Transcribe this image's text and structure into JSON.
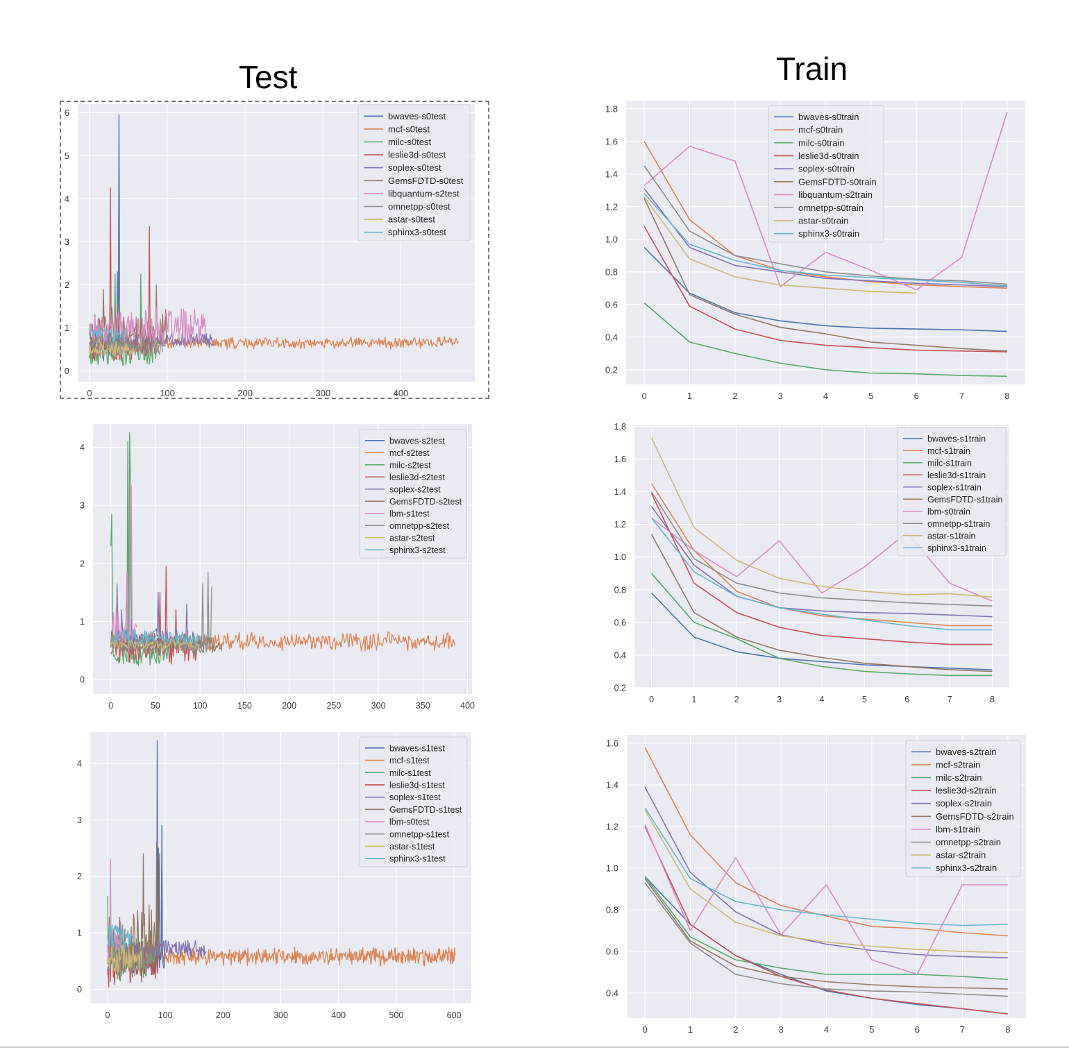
{
  "headings": {
    "test": "Test",
    "train": "Train"
  },
  "colors": {
    "bwaves": "#4c72b0",
    "mcf": "#dd8452",
    "milc": "#55a868",
    "leslie3d": "#c44e52",
    "soplex": "#8172b3",
    "GemsFDTD": "#937860",
    "lib": "#da8bc3",
    "omnetpp": "#8c8c8c",
    "astar": "#ccb974",
    "sphinx3": "#64b5cd"
  },
  "chart_data": [
    {
      "id": "test-s0",
      "type": "line",
      "xlim": [
        -15,
        495
      ],
      "ylim": [
        -0.25,
        6.2
      ],
      "xticks": [
        0,
        100,
        200,
        300,
        400
      ],
      "yticks": [
        0,
        1,
        2,
        3,
        4,
        5,
        6
      ],
      "ytick_decimals": 0,
      "series": [
        {
          "name": "bwaves-s0test",
          "key": "bwaves",
          "n": 40,
          "base": 0.5,
          "amp": 0.22,
          "seed": 11,
          "spikes": [
            [
              38,
              5.95
            ],
            [
              36,
              2.3
            ]
          ]
        },
        {
          "name": "mcf-s0test",
          "key": "mcf",
          "n": 475,
          "base": 0.65,
          "amp": 0.1,
          "seed": 12,
          "spikes": []
        },
        {
          "name": "milc-s0test",
          "key": "milc",
          "n": 88,
          "base": 0.45,
          "amp": 0.28,
          "seed": 13,
          "spikes": [
            [
              33,
              2.25
            ],
            [
              66,
              2.25
            ]
          ]
        },
        {
          "name": "leslie3d-s0test",
          "key": "leslie3d",
          "n": 85,
          "base": 0.55,
          "amp": 0.3,
          "seed": 14,
          "spikes": [
            [
              27,
              4.25
            ],
            [
              77,
              3.35
            ]
          ]
        },
        {
          "name": "soplex-s0test",
          "key": "soplex",
          "n": 162,
          "base": 0.72,
          "amp": 0.13,
          "seed": 15,
          "spikes": []
        },
        {
          "name": "GemsFDTD-s0test",
          "key": "GemsFDTD",
          "n": 100,
          "base": 0.95,
          "amp": 0.45,
          "seed": 16,
          "spikes": [
            [
              18,
              1.9
            ],
            [
              86,
              2.0
            ]
          ]
        },
        {
          "name": "libquantum-s2test",
          "key": "lib",
          "n": 150,
          "base": 1.0,
          "amp": 0.35,
          "seed": 17,
          "spikes": []
        },
        {
          "name": "omnetpp-s0test",
          "key": "omnetpp",
          "n": 95,
          "base": 0.55,
          "amp": 0.2,
          "seed": 18,
          "spikes": []
        },
        {
          "name": "astar-s0test",
          "key": "astar",
          "n": 60,
          "base": 0.5,
          "amp": 0.15,
          "seed": 19,
          "spikes": []
        },
        {
          "name": "sphinx3-s0test",
          "key": "sphinx3",
          "n": 48,
          "base": 0.85,
          "amp": 0.12,
          "seed": 20,
          "spikes": []
        }
      ]
    },
    {
      "id": "test-s2",
      "type": "line",
      "xlim": [
        -20,
        405
      ],
      "ylim": [
        -0.25,
        4.4
      ],
      "xticks": [
        0,
        50,
        100,
        150,
        200,
        250,
        300,
        350,
        400
      ],
      "yticks": [
        0,
        1,
        2,
        3,
        4
      ],
      "ytick_decimals": 0,
      "series": [
        {
          "name": "bwaves-s2test",
          "key": "bwaves",
          "n": 60,
          "base": 0.65,
          "amp": 0.07,
          "seed": 21,
          "spikes": []
        },
        {
          "name": "mcf-s2test",
          "key": "mcf",
          "n": 387,
          "base": 0.65,
          "amp": 0.12,
          "seed": 22,
          "spikes": []
        },
        {
          "name": "milc-s2test",
          "key": "milc",
          "n": 70,
          "base": 0.45,
          "amp": 0.18,
          "seed": 23,
          "spikes": [
            [
              1,
              2.85
            ],
            [
              0,
              2.3
            ],
            [
              19,
              4.1
            ],
            [
              21,
              4.25
            ],
            [
              22,
              3.4
            ]
          ]
        },
        {
          "name": "leslie3d-s2test",
          "key": "leslie3d",
          "n": 100,
          "base": 0.55,
          "amp": 0.2,
          "seed": 24,
          "spikes": [
            [
              62,
              1.95
            ],
            [
              55,
              1.5
            ],
            [
              73,
              1.2
            ]
          ]
        },
        {
          "name": "soplex-s2test",
          "key": "soplex",
          "n": 110,
          "base": 0.7,
          "amp": 0.15,
          "seed": 25,
          "spikes": [
            [
              7,
              1.65
            ],
            [
              12,
              1.2
            ],
            [
              23,
              1.05
            ],
            [
              53,
              1.5
            ],
            [
              85,
              1.3
            ]
          ]
        },
        {
          "name": "GemsFDTD-s2test",
          "key": "GemsFDTD",
          "n": 125,
          "base": 0.6,
          "amp": 0.14,
          "seed": 26,
          "spikes": []
        },
        {
          "name": "lbm-s1test",
          "key": "lib",
          "n": 30,
          "base": 0.9,
          "amp": 0.3,
          "seed": 27,
          "spikes": [
            [
              18,
              1.85
            ],
            [
              23,
              3.3
            ],
            [
              22,
              3.4
            ]
          ]
        },
        {
          "name": "omnetpp-s2test",
          "key": "omnetpp",
          "n": 114,
          "base": 0.6,
          "amp": 0.12,
          "seed": 28,
          "spikes": [
            [
              103,
              1.65
            ],
            [
              109,
              1.85
            ],
            [
              113,
              1.6
            ]
          ]
        },
        {
          "name": "astar-s2test",
          "key": "astar",
          "n": 100,
          "base": 0.6,
          "amp": 0.08,
          "seed": 29,
          "spikes": []
        },
        {
          "name": "sphinx3-s2test",
          "key": "sphinx3",
          "n": 100,
          "base": 0.72,
          "amp": 0.1,
          "seed": 30,
          "spikes": []
        }
      ]
    },
    {
      "id": "test-s1",
      "type": "line",
      "xlim": [
        -30,
        630
      ],
      "ylim": [
        -0.25,
        4.55
      ],
      "xticks": [
        0,
        100,
        200,
        300,
        400,
        500,
        600
      ],
      "yticks": [
        0,
        1,
        2,
        3,
        4
      ],
      "ytick_decimals": 0,
      "series": [
        {
          "name": "bwaves-s1test",
          "key": "bwaves",
          "n": 100,
          "base": 0.55,
          "amp": 0.25,
          "seed": 31,
          "spikes": [
            [
              86,
              4.4
            ],
            [
              94,
              2.9
            ],
            [
              88,
              2.5
            ]
          ]
        },
        {
          "name": "mcf-s1test",
          "key": "mcf",
          "n": 603,
          "base": 0.58,
          "amp": 0.12,
          "seed": 32,
          "spikes": []
        },
        {
          "name": "milc-s1test",
          "key": "milc",
          "n": 85,
          "base": 0.55,
          "amp": 0.3,
          "seed": 33,
          "spikes": [
            [
              0,
              1.65
            ]
          ]
        },
        {
          "name": "leslie3d-s1test",
          "key": "leslie3d",
          "n": 90,
          "base": 0.45,
          "amp": 0.3,
          "seed": 34,
          "spikes": []
        },
        {
          "name": "soplex-s1test",
          "key": "soplex",
          "n": 172,
          "base": 0.72,
          "amp": 0.12,
          "seed": 35,
          "spikes": []
        },
        {
          "name": "GemsFDTD-s1test",
          "key": "GemsFDTD",
          "n": 92,
          "base": 0.9,
          "amp": 0.45,
          "seed": 36,
          "spikes": [
            [
              62,
              2.4
            ],
            [
              85,
              2.6
            ],
            [
              90,
              2.4
            ]
          ]
        },
        {
          "name": "lbm-s0test",
          "key": "lib",
          "n": 30,
          "base": 0.9,
          "amp": 0.3,
          "seed": 37,
          "spikes": [
            [
              5,
              2.3
            ]
          ]
        },
        {
          "name": "omnetpp-s1test",
          "key": "omnetpp",
          "n": 80,
          "base": 0.5,
          "amp": 0.22,
          "seed": 38,
          "spikes": []
        },
        {
          "name": "astar-s1test",
          "key": "astar",
          "n": 60,
          "base": 0.55,
          "amp": 0.2,
          "seed": 39,
          "spikes": []
        },
        {
          "name": "sphinx3-s1test",
          "key": "sphinx3",
          "n": 45,
          "base": 0.95,
          "amp": 0.18,
          "seed": 40,
          "spikes": []
        }
      ]
    },
    {
      "id": "train-s0",
      "type": "line",
      "x": [
        0,
        1,
        2,
        3,
        4,
        5,
        6,
        7,
        8
      ],
      "xlim": [
        -0.4,
        8.4
      ],
      "ylim": [
        0.11,
        1.85
      ],
      "xticks": [
        0,
        1,
        2,
        3,
        4,
        5,
        6,
        7,
        8
      ],
      "yticks": [
        0.2,
        0.4,
        0.6,
        0.8,
        1.0,
        1.2,
        1.4,
        1.6,
        1.8
      ],
      "ytick_decimals": 1,
      "series": [
        {
          "name": "bwaves-s0train",
          "key": "bwaves",
          "values": [
            0.95,
            0.67,
            0.55,
            0.5,
            0.47,
            0.455,
            0.45,
            0.445,
            0.435
          ]
        },
        {
          "name": "mcf-s0train",
          "key": "mcf",
          "values": [
            1.6,
            1.12,
            0.9,
            0.81,
            0.77,
            0.74,
            0.72,
            0.71,
            0.7
          ]
        },
        {
          "name": "milc-s0train",
          "key": "milc",
          "values": [
            0.61,
            0.37,
            0.3,
            0.24,
            0.2,
            0.18,
            0.175,
            0.165,
            0.16
          ]
        },
        {
          "name": "leslie3d-s0train",
          "key": "leslie3d",
          "values": [
            1.08,
            0.59,
            0.45,
            0.38,
            0.35,
            0.335,
            0.32,
            0.315,
            0.31
          ]
        },
        {
          "name": "soplex-s0train",
          "key": "soplex",
          "values": [
            1.31,
            0.95,
            0.84,
            0.8,
            0.76,
            0.745,
            0.73,
            0.72,
            0.71
          ]
        },
        {
          "name": "GemsFDTD-s0train",
          "key": "GemsFDTD",
          "values": [
            1.25,
            0.66,
            0.54,
            0.46,
            0.42,
            0.37,
            0.35,
            0.33,
            0.315
          ]
        },
        {
          "name": "libquantum-s2train",
          "key": "lib",
          "values": [
            1.33,
            1.57,
            1.48,
            0.71,
            0.92,
            0.81,
            0.69,
            0.89,
            1.78
          ]
        },
        {
          "name": "omnetpp-s0train",
          "key": "omnetpp",
          "values": [
            1.45,
            1.05,
            0.9,
            0.85,
            0.8,
            0.775,
            0.755,
            0.745,
            0.725
          ]
        },
        {
          "name": "astar-s0train",
          "key": "astar",
          "values": [
            1.26,
            0.88,
            0.77,
            0.72,
            0.7,
            0.68,
            0.67,
            null,
            null
          ]
        },
        {
          "name": "sphinx3-s0train",
          "key": "sphinx3",
          "values": [
            1.28,
            0.97,
            0.87,
            0.81,
            0.78,
            0.765,
            0.75,
            0.735,
            0.715
          ]
        }
      ]
    },
    {
      "id": "train-s1",
      "type": "line",
      "x": [
        0,
        1,
        2,
        3,
        4,
        5,
        6,
        7,
        8
      ],
      "xlim": [
        -0.4,
        8.4
      ],
      "ylim": [
        0.2,
        1.81
      ],
      "xticks": [
        0,
        1,
        2,
        3,
        4,
        5,
        6,
        7,
        8
      ],
      "yticks": [
        0.2,
        0.4,
        0.6,
        0.8,
        1.0,
        1.2,
        1.4,
        1.6,
        1.8
      ],
      "ytick_decimals": 1,
      "series": [
        {
          "name": "bwaves-s1train",
          "key": "bwaves",
          "values": [
            0.78,
            0.51,
            0.42,
            0.38,
            0.36,
            0.34,
            0.33,
            0.32,
            0.31
          ]
        },
        {
          "name": "mcf-s1train",
          "key": "mcf",
          "values": [
            1.45,
            1.04,
            0.79,
            0.69,
            0.64,
            0.62,
            0.6,
            0.58,
            0.58
          ]
        },
        {
          "name": "milc-s1train",
          "key": "milc",
          "values": [
            0.9,
            0.6,
            0.5,
            0.38,
            0.33,
            0.3,
            0.285,
            0.275,
            0.275
          ]
        },
        {
          "name": "leslie3d-s1train",
          "key": "leslie3d",
          "values": [
            1.39,
            0.84,
            0.66,
            0.57,
            0.52,
            0.5,
            0.48,
            0.465,
            0.465
          ]
        },
        {
          "name": "soplex-s1train",
          "key": "soplex",
          "values": [
            1.31,
            0.95,
            0.76,
            0.69,
            0.67,
            0.66,
            0.655,
            0.645,
            0.635
          ]
        },
        {
          "name": "GemsFDTD-s1train",
          "key": "GemsFDTD",
          "values": [
            1.14,
            0.66,
            0.51,
            0.43,
            0.385,
            0.35,
            0.33,
            0.31,
            0.3
          ]
        },
        {
          "name": "lbm-s0train",
          "key": "lib",
          "values": [
            1.24,
            1.04,
            0.88,
            1.1,
            0.78,
            0.94,
            1.15,
            0.84,
            0.73
          ]
        },
        {
          "name": "omnetpp-s1train",
          "key": "omnetpp",
          "values": [
            1.4,
            0.99,
            0.84,
            0.78,
            0.75,
            0.735,
            0.72,
            0.71,
            0.7
          ]
        },
        {
          "name": "astar-s1train",
          "key": "astar",
          "values": [
            1.73,
            1.18,
            0.98,
            0.87,
            0.82,
            0.79,
            0.77,
            0.775,
            0.755
          ]
        },
        {
          "name": "sphinx3-s1train",
          "key": "sphinx3",
          "values": [
            1.24,
            0.91,
            0.76,
            0.69,
            0.65,
            0.615,
            0.58,
            0.555,
            0.555
          ]
        }
      ]
    },
    {
      "id": "train-s2",
      "type": "line",
      "x": [
        0,
        1,
        2,
        3,
        4,
        5,
        6,
        7,
        8
      ],
      "xlim": [
        -0.4,
        8.4
      ],
      "ylim": [
        0.28,
        1.64
      ],
      "xticks": [
        0,
        1,
        2,
        3,
        4,
        5,
        6,
        7,
        8
      ],
      "yticks": [
        0.4,
        0.6,
        0.8,
        1.0,
        1.2,
        1.4,
        1.6
      ],
      "ytick_decimals": 1,
      "series": [
        {
          "name": "bwaves-s2train",
          "key": "bwaves",
          "values": [
            0.96,
            0.73,
            0.58,
            0.49,
            0.41,
            0.375,
            0.345,
            0.325,
            0.3
          ]
        },
        {
          "name": "mcf-s2train",
          "key": "mcf",
          "values": [
            1.58,
            1.16,
            0.93,
            0.82,
            0.77,
            0.72,
            0.71,
            0.69,
            0.675
          ]
        },
        {
          "name": "milc-s2train",
          "key": "milc",
          "values": [
            0.96,
            0.67,
            0.56,
            0.52,
            0.49,
            0.49,
            0.49,
            0.48,
            0.465
          ]
        },
        {
          "name": "leslie3d-s2train",
          "key": "leslie3d",
          "values": [
            1.2,
            0.73,
            0.58,
            0.48,
            0.415,
            0.375,
            0.35,
            0.325,
            0.3
          ]
        },
        {
          "name": "soplex-s2train",
          "key": "soplex",
          "values": [
            1.39,
            0.98,
            0.79,
            0.68,
            0.635,
            0.605,
            0.585,
            0.575,
            0.57
          ]
        },
        {
          "name": "GemsFDTD-s2train",
          "key": "GemsFDTD",
          "values": [
            0.95,
            0.65,
            0.53,
            0.48,
            0.455,
            0.44,
            0.43,
            0.425,
            0.42
          ]
        },
        {
          "name": "lbm-s1train",
          "key": "lib",
          "values": [
            1.21,
            0.7,
            1.05,
            0.68,
            0.92,
            0.56,
            0.49,
            0.92,
            0.92
          ]
        },
        {
          "name": "omnetpp-s2train",
          "key": "omnetpp",
          "values": [
            0.93,
            0.64,
            0.49,
            0.445,
            0.42,
            0.41,
            0.405,
            0.395,
            0.385
          ]
        },
        {
          "name": "astar-s2train",
          "key": "astar",
          "values": [
            1.28,
            0.9,
            0.74,
            0.675,
            0.645,
            0.625,
            0.61,
            0.6,
            0.595
          ]
        },
        {
          "name": "sphinx3-s2train",
          "key": "sphinx3",
          "values": [
            1.29,
            0.95,
            0.84,
            0.8,
            0.775,
            0.755,
            0.735,
            0.725,
            0.73
          ]
        }
      ]
    }
  ]
}
